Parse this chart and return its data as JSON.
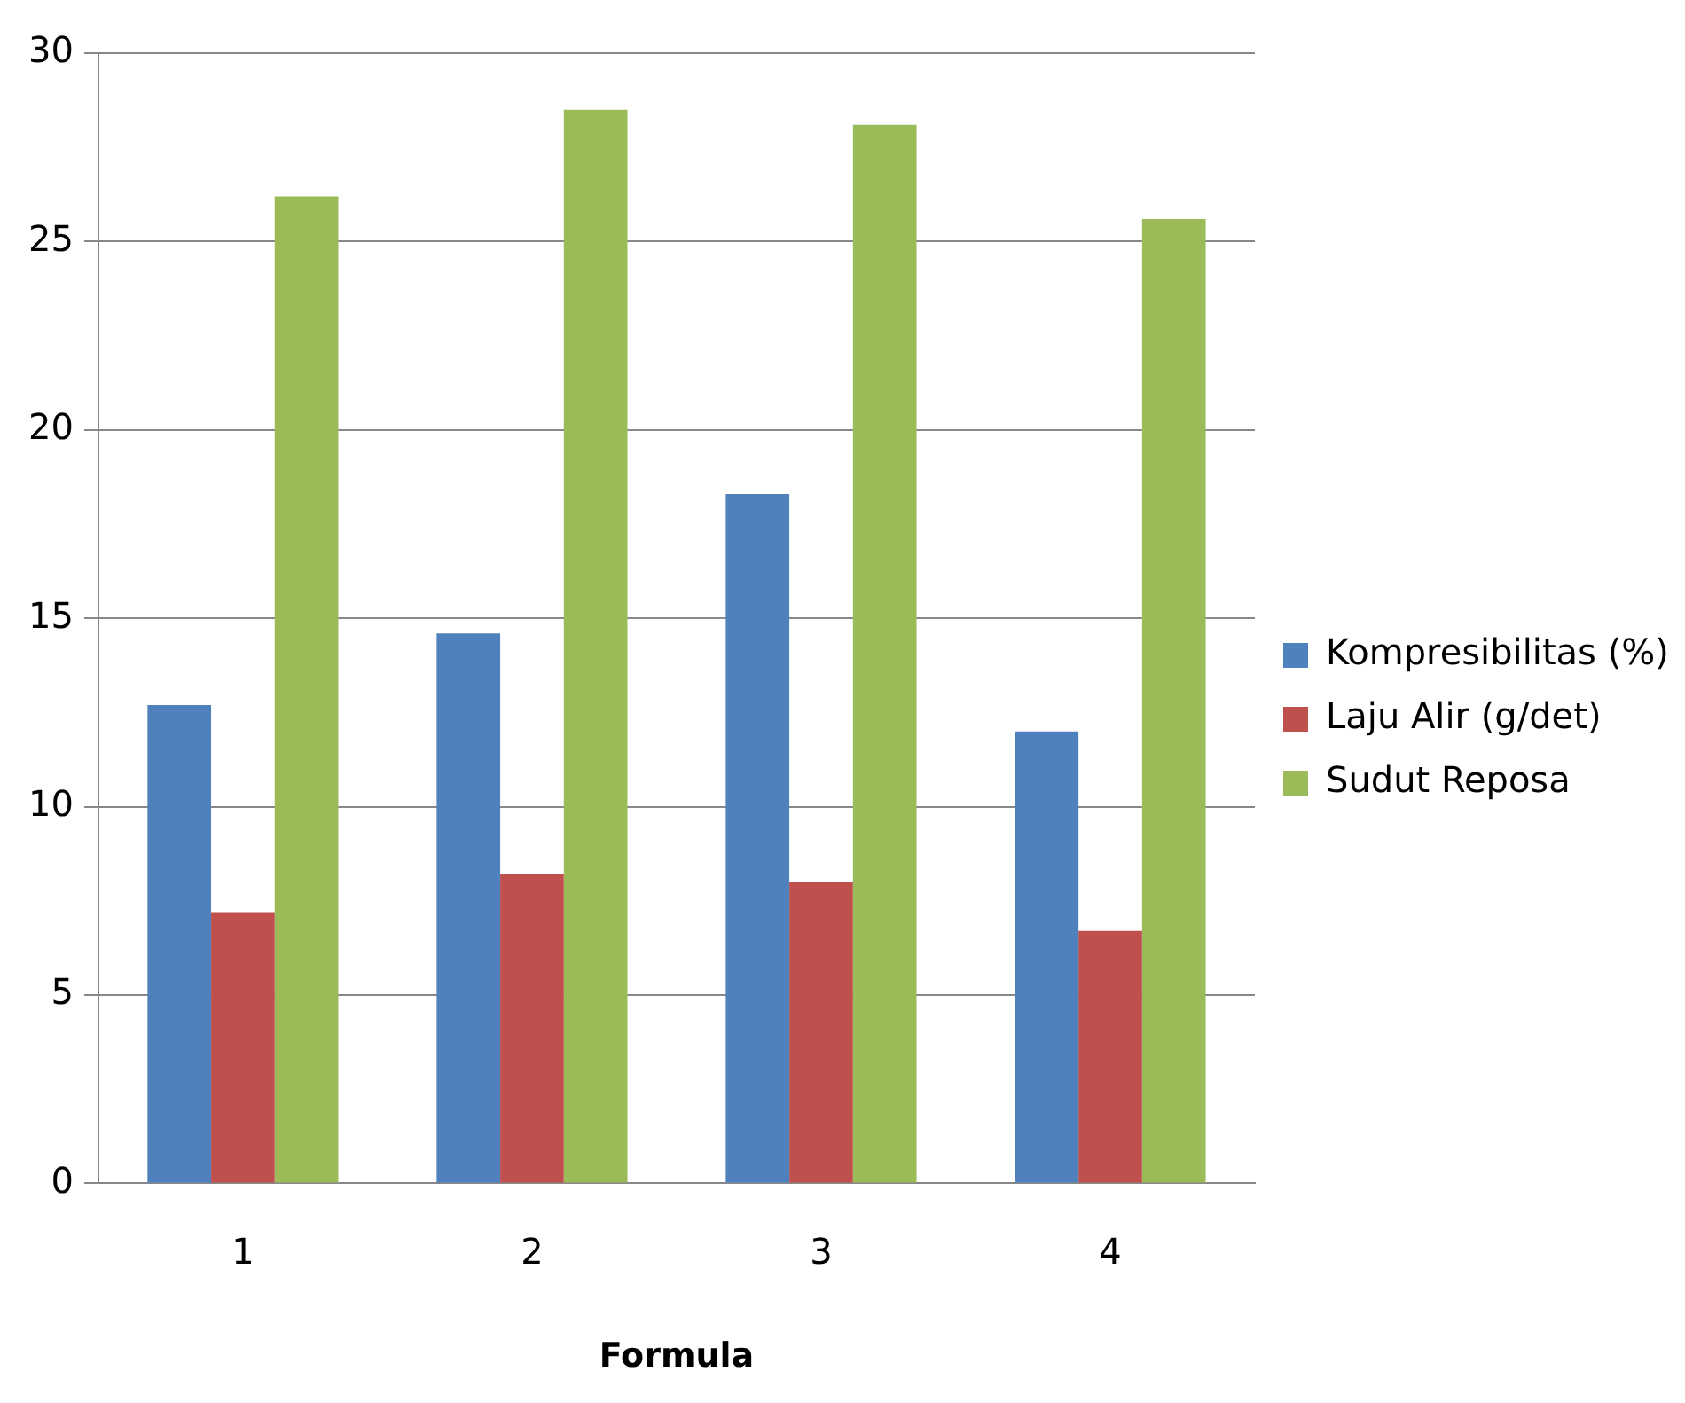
{
  "chart_data": {
    "type": "bar",
    "xlabel": "Formula",
    "categories": [
      "1",
      "2",
      "3",
      "4"
    ],
    "series": [
      {
        "name": "Kompresibilitas (%)",
        "color": "#4f81bd",
        "values": [
          12.7,
          14.6,
          18.3,
          12.0
        ]
      },
      {
        "name": "Laju Alir (g/det)",
        "color": "#c0504d",
        "values": [
          7.2,
          8.2,
          8.0,
          6.7
        ]
      },
      {
        "name": "Sudut Reposa",
        "color": "#9bbb59",
        "values": [
          26.2,
          28.5,
          28.1,
          25.6
        ]
      }
    ],
    "ylim": [
      0,
      30
    ],
    "yticks": [
      0,
      5,
      10,
      15,
      20,
      25,
      30
    ],
    "grid": "y",
    "legend": "right"
  }
}
